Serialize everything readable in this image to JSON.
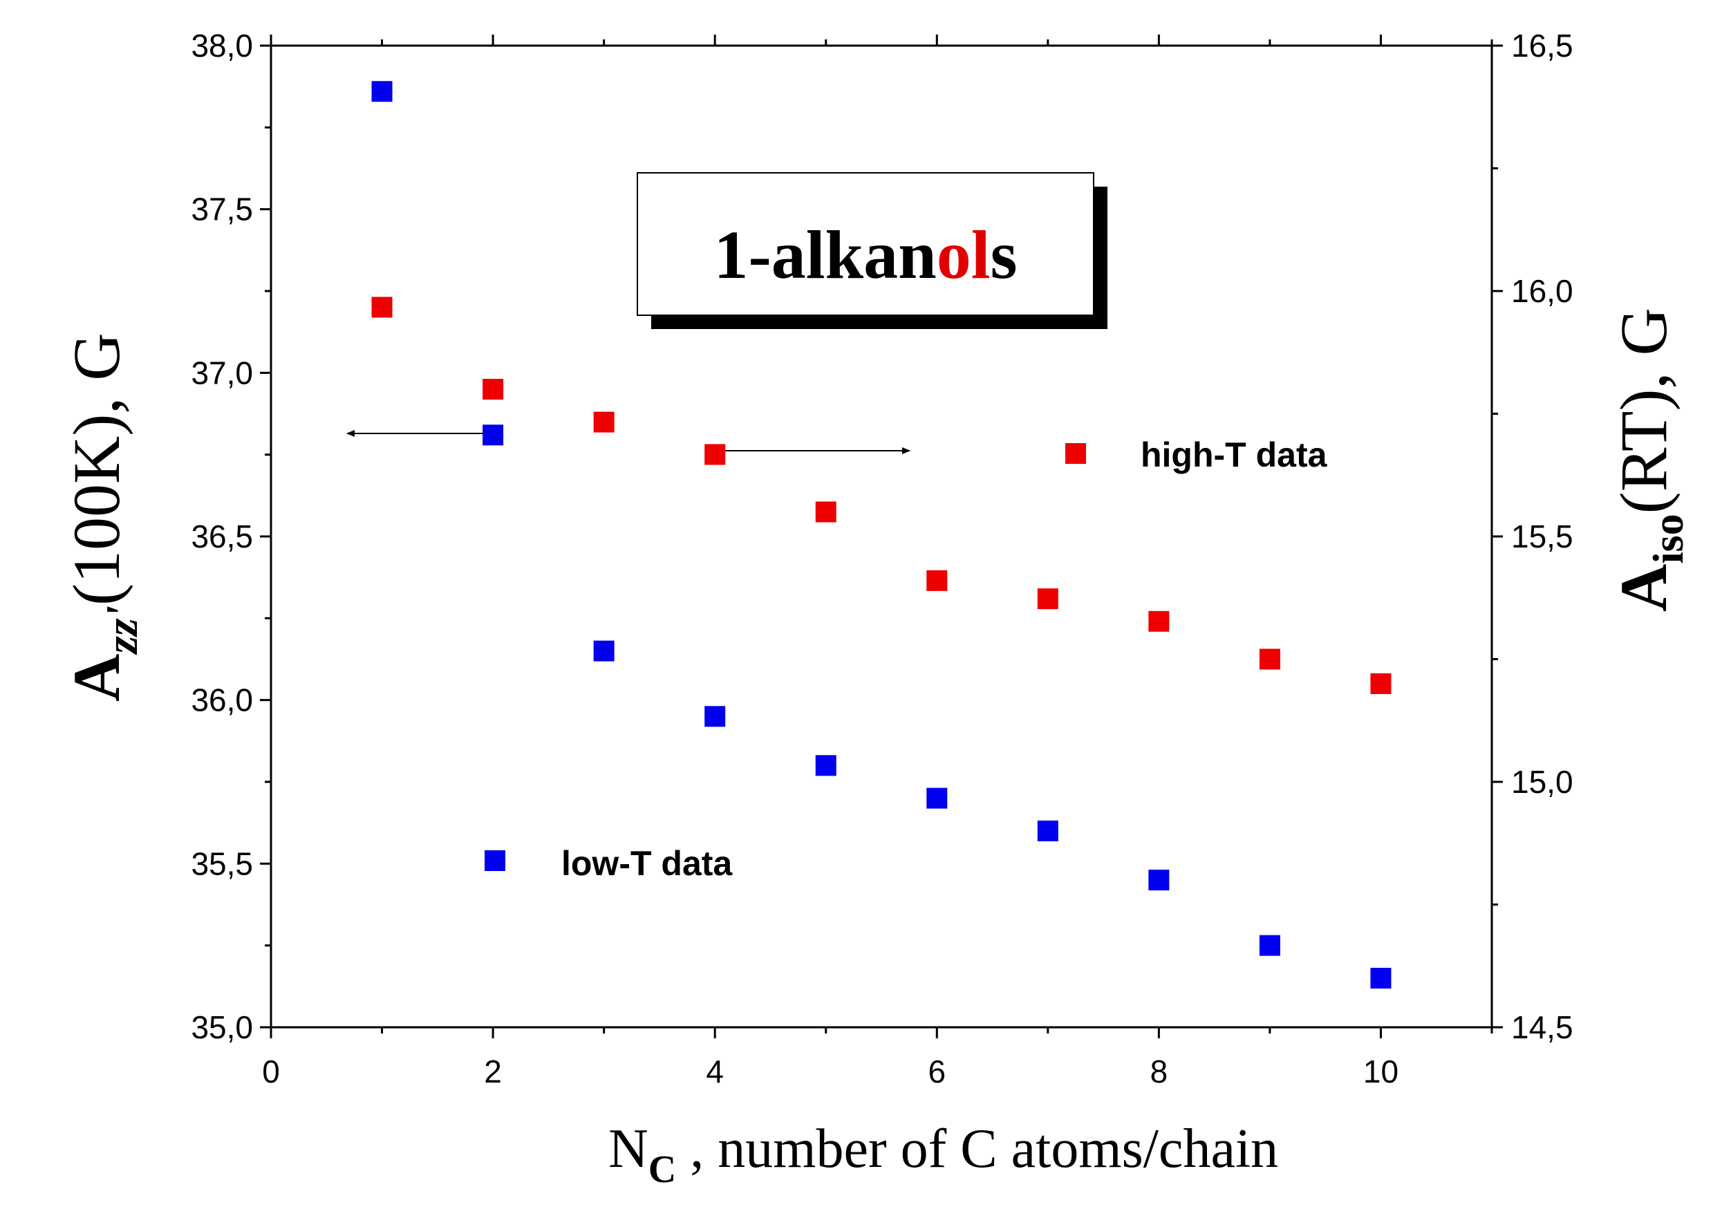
{
  "chart_data": {
    "type": "scatter",
    "title_parts": [
      {
        "text": "1-alkan",
        "color": "#000000"
      },
      {
        "text": "ol",
        "color": "#e00000"
      },
      {
        "text": "s",
        "color": "#000000"
      }
    ],
    "xlabel": {
      "main": "N",
      "sub": "C",
      "rest": " , number of C atoms/chain"
    },
    "ylabel_left": {
      "main": "A",
      "sub": "zz'",
      "rest": "(100K), G"
    },
    "ylabel_right": {
      "main": "A",
      "sub": "iso",
      "rest": "(RT), G"
    },
    "xlim": [
      0,
      11
    ],
    "ylim_left": [
      35.0,
      38.0
    ],
    "ylim_right": [
      14.5,
      16.5
    ],
    "x_ticks": [
      "0",
      "2",
      "4",
      "6",
      "8",
      "10"
    ],
    "y_left_ticks": [
      "35,0",
      "35,5",
      "36,0",
      "36,5",
      "37,0",
      "37,5",
      "38,0"
    ],
    "y_right_ticks": [
      "14,5",
      "15,0",
      "15,5",
      "16,0",
      "16,5"
    ],
    "series": [
      {
        "name": "high-T data",
        "axis": "right",
        "color": "#ee0000",
        "x": [
          1,
          2,
          3,
          4,
          5,
          6,
          7,
          8,
          9,
          10
        ],
        "y": [
          15.967,
          15.8,
          15.733,
          15.667,
          15.55,
          15.41,
          15.373,
          15.327,
          15.25,
          15.2
        ]
      },
      {
        "name": "low-T data",
        "axis": "left",
        "color": "#0000ee",
        "x": [
          1,
          2,
          3,
          4,
          5,
          6,
          7,
          8,
          9,
          10
        ],
        "y": [
          37.86,
          36.81,
          36.15,
          35.95,
          35.8,
          35.7,
          35.6,
          35.45,
          35.25,
          35.15
        ]
      }
    ],
    "legend_placement": "inside",
    "annotations": [
      {
        "type": "arrow",
        "direction": "left",
        "meaning": "low-T data on left axis"
      },
      {
        "type": "arrow",
        "direction": "right",
        "meaning": "high-T data on right axis"
      }
    ]
  }
}
